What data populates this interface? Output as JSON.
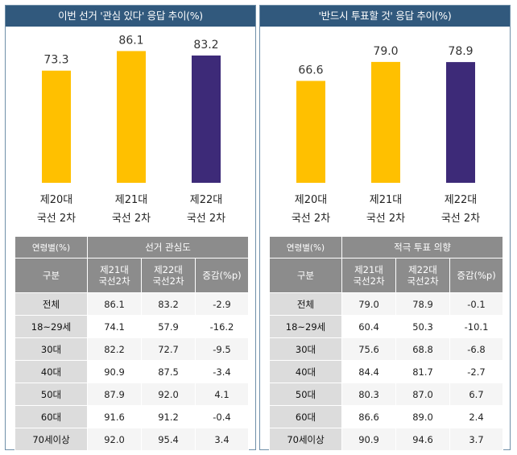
{
  "panels": [
    {
      "id": "interest",
      "title": "이번 선거 '관심 있다' 응답 추이(%)",
      "chart_data": {
        "type": "bar",
        "title": "이번 선거 '관심 있다' 응답 추이(%)",
        "categories": [
          [
            "제20대",
            "국선 2차"
          ],
          [
            "제21대",
            "국선 2차"
          ],
          [
            "제22대",
            "국선 2차"
          ]
        ],
        "values": [
          73.3,
          86.1,
          83.2
        ],
        "value_labels": [
          "73.3",
          "86.1",
          "83.2"
        ],
        "colors": [
          "#ffc000",
          "#ffc000",
          "#3d2a78"
        ],
        "ylim": [
          0,
          100
        ],
        "grid": false,
        "legend": "none"
      },
      "table": {
        "corner_label": "연령별(%)",
        "group_label": "선거 관심도",
        "row_header": "구분",
        "columns": [
          [
            "제21대",
            "국선2차"
          ],
          [
            "제22대",
            "국선2차"
          ],
          [
            "증감(%p)"
          ]
        ],
        "rows": [
          {
            "label": "전체",
            "values": [
              "86.1",
              "83.2",
              "-2.9"
            ]
          },
          {
            "label": "18~29세",
            "values": [
              "74.1",
              "57.9",
              "-16.2"
            ]
          },
          {
            "label": "30대",
            "values": [
              "82.2",
              "72.7",
              "-9.5"
            ]
          },
          {
            "label": "40대",
            "values": [
              "90.9",
              "87.5",
              "-3.4"
            ]
          },
          {
            "label": "50대",
            "values": [
              "87.9",
              "92.0",
              "4.1"
            ]
          },
          {
            "label": "60대",
            "values": [
              "91.6",
              "91.2",
              "-0.4"
            ]
          },
          {
            "label": "70세이상",
            "values": [
              "92.0",
              "95.4",
              "3.4"
            ]
          }
        ]
      }
    },
    {
      "id": "vote",
      "title": "'반드시 투표할 것' 응답 추이(%)",
      "chart_data": {
        "type": "bar",
        "title": "'반드시 투표할 것' 응답 추이(%)",
        "categories": [
          [
            "제20대",
            "국선 2차"
          ],
          [
            "제21대",
            "국선 2차"
          ],
          [
            "제22대",
            "국선 2차"
          ]
        ],
        "values": [
          66.6,
          79.0,
          78.9
        ],
        "value_labels": [
          "66.6",
          "79.0",
          "78.9"
        ],
        "colors": [
          "#ffc000",
          "#ffc000",
          "#3d2a78"
        ],
        "ylim": [
          0,
          100
        ],
        "grid": false,
        "legend": "none"
      },
      "table": {
        "corner_label": "연령별(%)",
        "group_label": "적극 투표 의향",
        "row_header": "구분",
        "columns": [
          [
            "제21대",
            "국선2차"
          ],
          [
            "제22대",
            "국선2차"
          ],
          [
            "증감(%p)"
          ]
        ],
        "rows": [
          {
            "label": "전체",
            "values": [
              "79.0",
              "78.9",
              "-0.1"
            ]
          },
          {
            "label": "18~29세",
            "values": [
              "60.4",
              "50.3",
              "-10.1"
            ]
          },
          {
            "label": "30대",
            "values": [
              "75.6",
              "68.8",
              "-6.8"
            ]
          },
          {
            "label": "40대",
            "values": [
              "84.4",
              "81.7",
              "-2.7"
            ]
          },
          {
            "label": "50대",
            "values": [
              "80.3",
              "87.0",
              "6.7"
            ]
          },
          {
            "label": "60대",
            "values": [
              "86.6",
              "89.0",
              "2.4"
            ]
          },
          {
            "label": "70세이상",
            "values": [
              "90.9",
              "94.6",
              "3.7"
            ]
          }
        ]
      }
    }
  ]
}
